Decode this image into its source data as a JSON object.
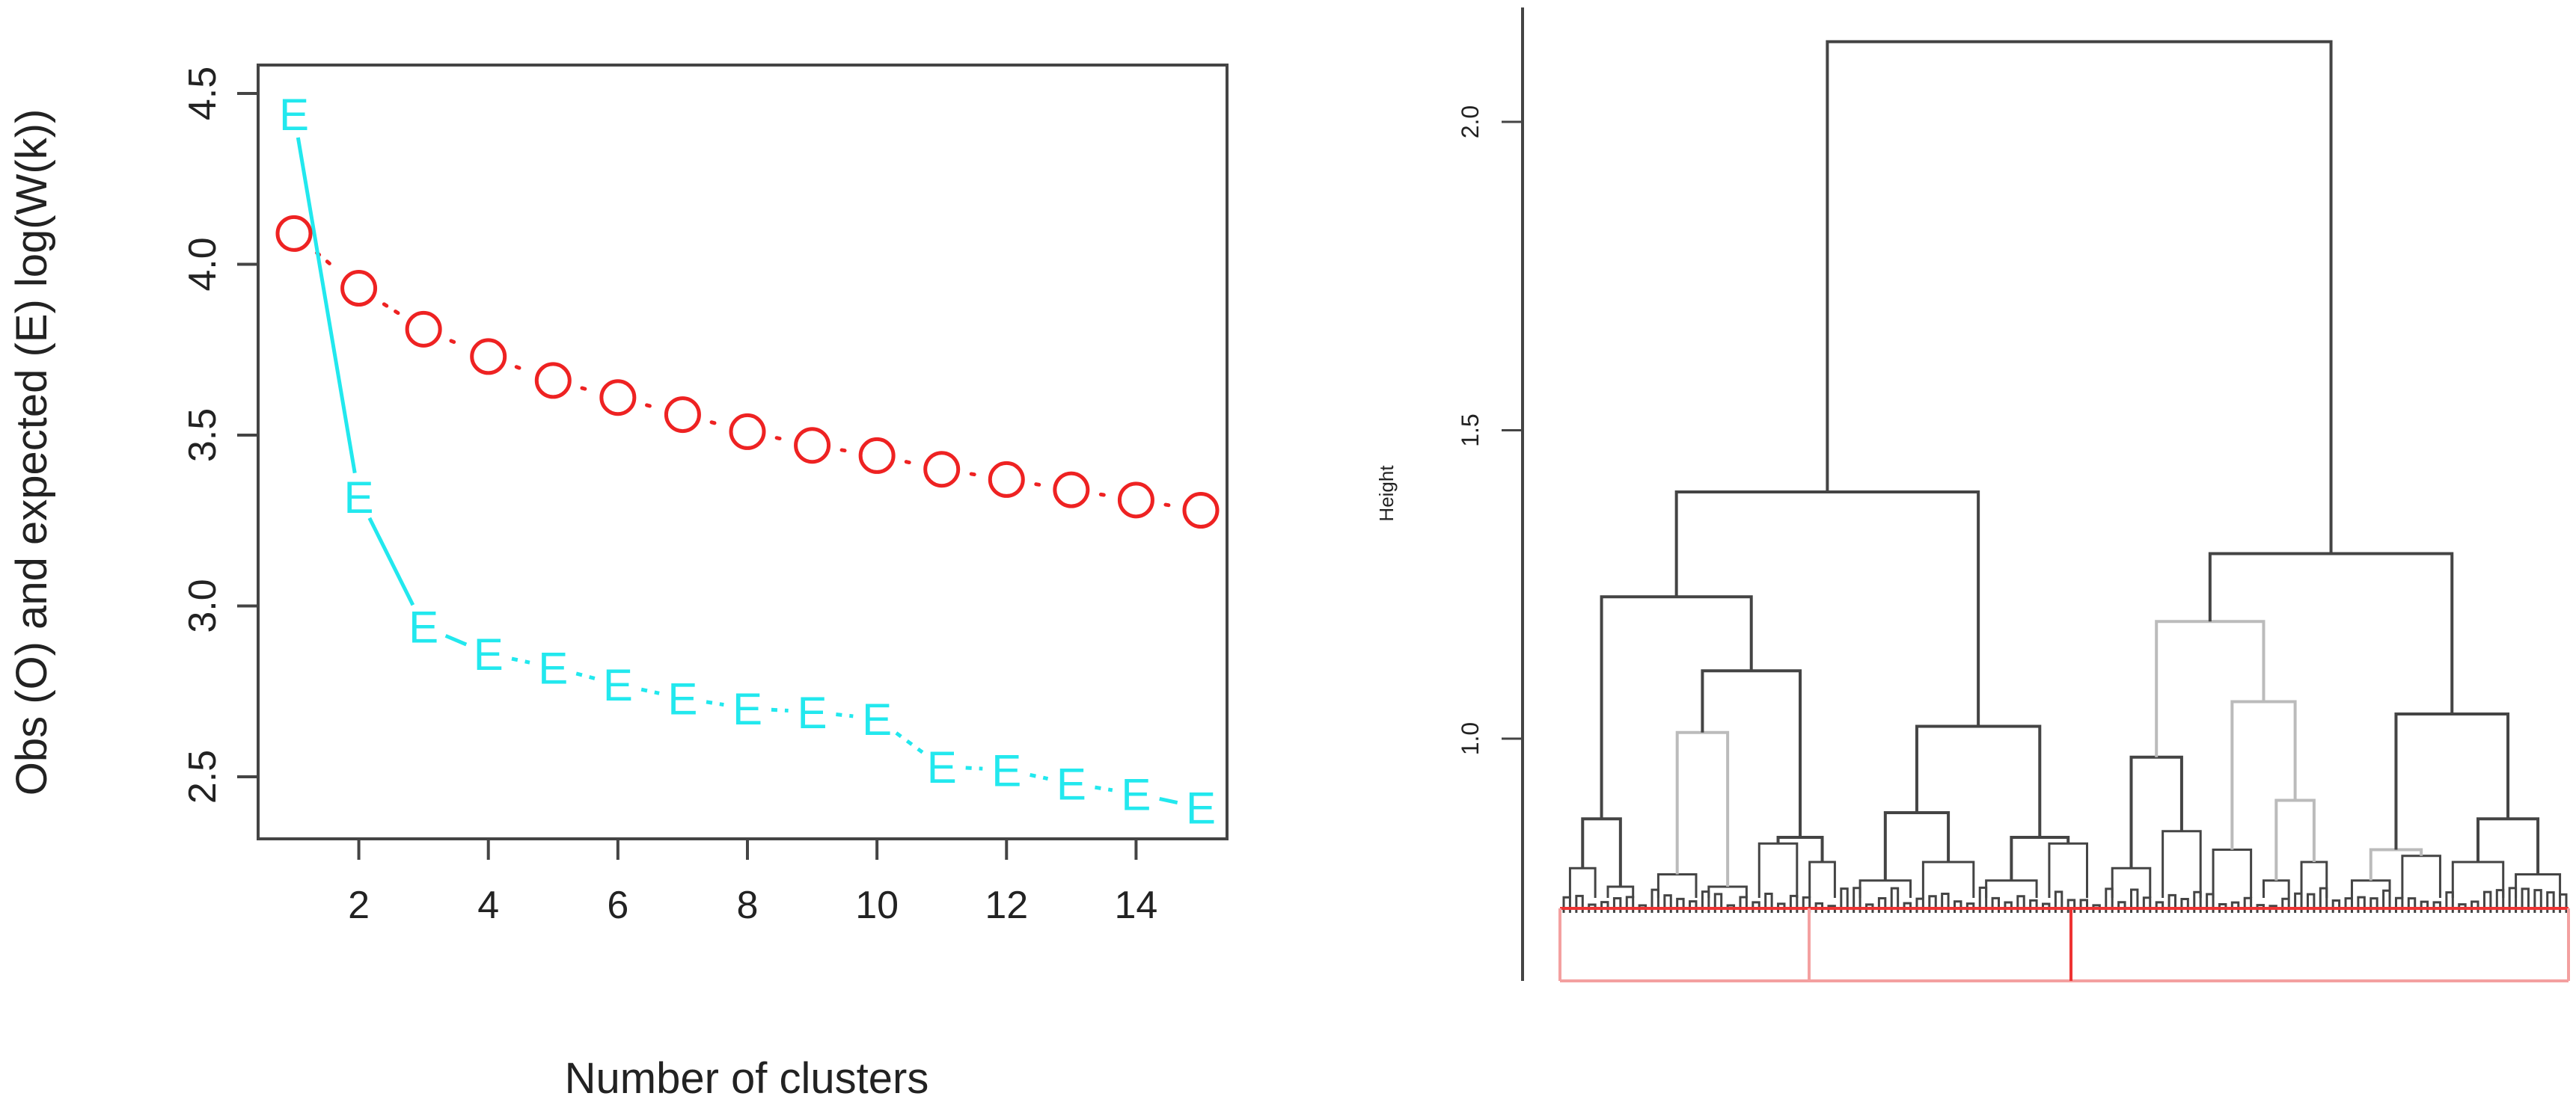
{
  "chart_data": [
    {
      "type": "line",
      "title": "",
      "xlabel": "Number of clusters",
      "ylabel": "Obs (O) and expected (E) log(W(k))",
      "xlim": [
        0.5,
        15.5
      ],
      "ylim": [
        2.3,
        4.5
      ],
      "xticks": [
        2,
        4,
        6,
        8,
        10,
        12,
        14
      ],
      "yticks": [
        "2.5",
        "3.0",
        "3.5",
        "4.0",
        "4.5"
      ],
      "grid": false,
      "x": [
        1,
        2,
        3,
        4,
        5,
        6,
        7,
        8,
        9,
        10,
        11,
        12,
        13,
        14,
        15
      ],
      "series": [
        {
          "name": "Obs",
          "marker": "O",
          "line": "dotted",
          "color": "#ee2222",
          "values": [
            4.09,
            3.93,
            3.81,
            3.73,
            3.66,
            3.61,
            3.56,
            3.51,
            3.47,
            3.44,
            3.4,
            3.37,
            3.34,
            3.31,
            3.28
          ]
        },
        {
          "name": "Expected",
          "marker": "E",
          "line": "solid",
          "color": "#22e8ee",
          "values": [
            4.44,
            3.32,
            2.94,
            2.86,
            2.82,
            2.77,
            2.73,
            2.7,
            2.69,
            2.67,
            2.53,
            2.52,
            2.48,
            2.45,
            2.41
          ]
        }
      ]
    },
    {
      "type": "dendrogram",
      "title": "",
      "xlabel": "",
      "ylabel": "Height",
      "ylim": [
        0.6,
        2.2
      ],
      "yticks": [
        "1.0",
        "1.5",
        "2.0"
      ],
      "cut_height": 0.72,
      "cut_clusters": 3,
      "leaf_count": 160,
      "merges": [
        {
          "id": "root",
          "height": 2.13,
          "left": "L",
          "right": "R"
        },
        {
          "id": "L",
          "height": 1.4,
          "left": "LL",
          "right": "LR"
        },
        {
          "id": "R",
          "height": 1.3,
          "left": "RL",
          "right": "RR"
        },
        {
          "id": "LL",
          "height": 1.23,
          "left": "LLa",
          "right": "LLb"
        },
        {
          "id": "LLa",
          "height": 0.87,
          "left": "LLa1",
          "right": "LLa2"
        },
        {
          "id": "LLb",
          "height": 1.11,
          "left": "LLb1",
          "right": "LLb2"
        },
        {
          "id": "LLb1",
          "height": 1.01,
          "left": "LLb1a",
          "right": "LLb1b"
        },
        {
          "id": "LLb2",
          "height": 0.84,
          "left": "LLb2a",
          "right": "LLb2b"
        },
        {
          "id": "LR",
          "height": 1.02,
          "left": "LRa",
          "right": "LRb"
        },
        {
          "id": "LRa",
          "height": 0.88,
          "left": "LRa1",
          "right": "LRa2"
        },
        {
          "id": "LRb",
          "height": 0.84,
          "left": "LRb1",
          "right": "LRb2"
        },
        {
          "id": "RL",
          "height": 1.19,
          "left": "RLa",
          "right": "RLb"
        },
        {
          "id": "RLa",
          "height": 0.97,
          "left": "RLa1",
          "right": "RLa2"
        },
        {
          "id": "RLb",
          "height": 1.06,
          "left": "RLb1",
          "right": "RLb2"
        },
        {
          "id": "RLb2",
          "height": 0.9,
          "left": "RLb2a",
          "right": "RLb2b"
        },
        {
          "id": "RR",
          "height": 1.04,
          "left": "RRa",
          "right": "RRb"
        },
        {
          "id": "RRa",
          "height": 0.82,
          "left": "RRa1",
          "right": "RRa2"
        },
        {
          "id": "RRb",
          "height": 0.87,
          "left": "RRb1",
          "right": "RRb2"
        }
      ]
    }
  ],
  "colors": {
    "axis": "#444444",
    "dendrogram_line": "#444444",
    "dendrogram_light": "#bbbbbb",
    "cut_box": "#ee3333",
    "cut_box_light": "#f4a0a0"
  }
}
